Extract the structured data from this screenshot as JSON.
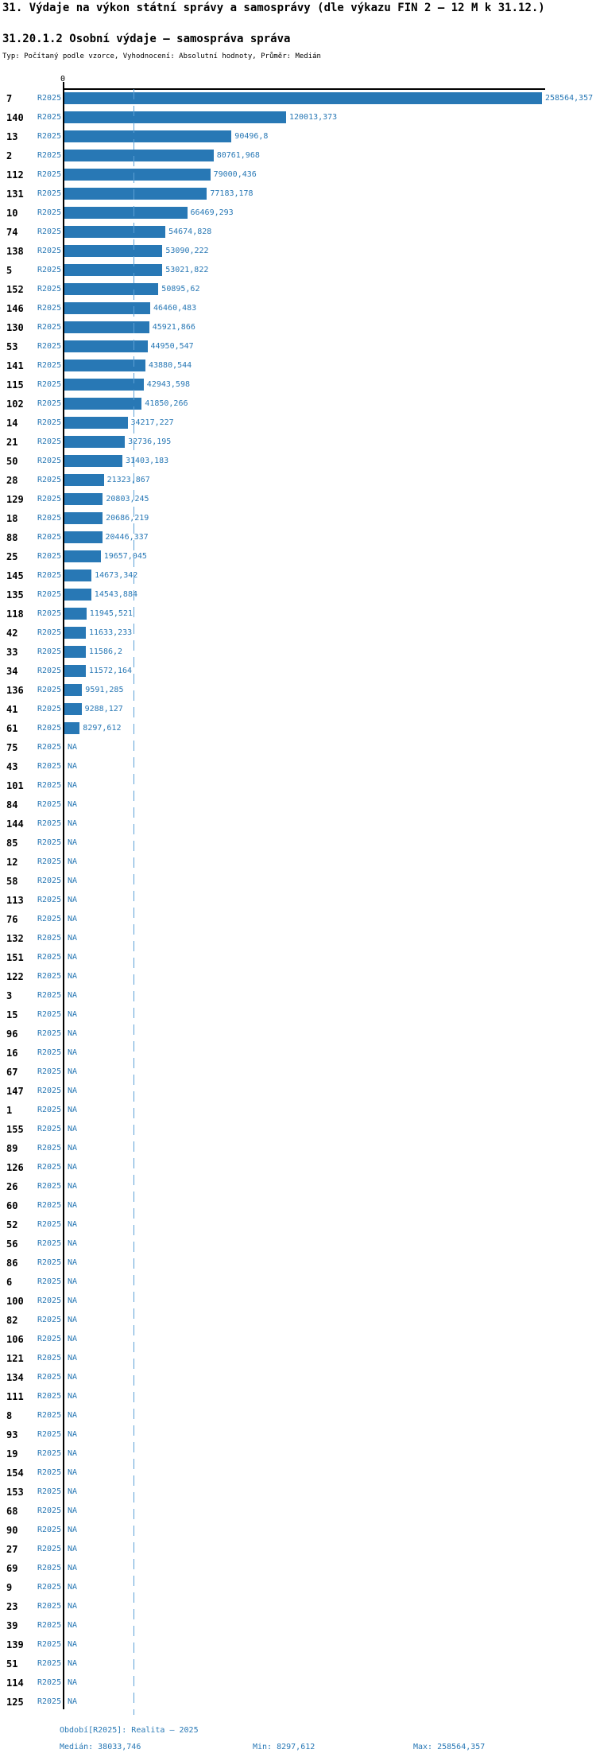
{
  "title": "31. Výdaje na výkon státní správy a samosprávy (dle výkazu FIN 2 – 12 M k 31.12.)",
  "subtitle": "31.20.1.2 Osobní výdaje – samospráva správa",
  "meta_line": "Typ: Počítaný podle vzorce, Vyhodnocení: Absolutní hodnoty, Průměr: Medián",
  "period_label": "R2025",
  "axis": {
    "zero_label": "0"
  },
  "colors": {
    "bar": "#2878b5",
    "text_blue": "#2878b5",
    "median_line": "#5ca1d6",
    "axis": "#000000"
  },
  "footer": {
    "period": "Období[R2025]: Realita – 2025",
    "median": "Medián: 38033,746",
    "min": "Min: 8297,612",
    "max": "Max: 258564,357"
  },
  "chart_data": {
    "type": "bar",
    "orientation": "horizontal",
    "title": "31.20.1.2 Osobní výdaje – samospráva správa",
    "xlabel": "",
    "ylabel": "",
    "xlim": [
      0,
      258564.357
    ],
    "axis_max": 258564.357,
    "grid": false,
    "median": 38033.746,
    "min": 8297.612,
    "max": 258564.357,
    "na_text": "NA",
    "series_label": "R2025",
    "rows": [
      {
        "label": "7",
        "value": 258564.357,
        "display": "258564,357"
      },
      {
        "label": "140",
        "value": 120013.373,
        "display": "120013,373"
      },
      {
        "label": "13",
        "value": 90496.8,
        "display": "90496,8"
      },
      {
        "label": "2",
        "value": 80761.968,
        "display": "80761,968"
      },
      {
        "label": "112",
        "value": 79000.436,
        "display": "79000,436"
      },
      {
        "label": "131",
        "value": 77183.178,
        "display": "77183,178"
      },
      {
        "label": "10",
        "value": 66469.293,
        "display": "66469,293"
      },
      {
        "label": "74",
        "value": 54674.828,
        "display": "54674,828"
      },
      {
        "label": "138",
        "value": 53090.222,
        "display": "53090,222"
      },
      {
        "label": "5",
        "value": 53021.822,
        "display": "53021,822"
      },
      {
        "label": "152",
        "value": 50895.62,
        "display": "50895,62"
      },
      {
        "label": "146",
        "value": 46460.483,
        "display": "46460,483"
      },
      {
        "label": "130",
        "value": 45921.866,
        "display": "45921,866"
      },
      {
        "label": "53",
        "value": 44950.547,
        "display": "44950,547"
      },
      {
        "label": "141",
        "value": 43880.544,
        "display": "43880,544"
      },
      {
        "label": "115",
        "value": 42943.598,
        "display": "42943,598"
      },
      {
        "label": "102",
        "value": 41850.266,
        "display": "41850,266"
      },
      {
        "label": "14",
        "value": 34217.227,
        "display": "34217,227"
      },
      {
        "label": "21",
        "value": 32736.195,
        "display": "32736,195"
      },
      {
        "label": "50",
        "value": 31403.183,
        "display": "31403,183"
      },
      {
        "label": "28",
        "value": 21323.867,
        "display": "21323,867"
      },
      {
        "label": "129",
        "value": 20803.245,
        "display": "20803,245"
      },
      {
        "label": "18",
        "value": 20686.219,
        "display": "20686,219"
      },
      {
        "label": "88",
        "value": 20446.337,
        "display": "20446,337"
      },
      {
        "label": "25",
        "value": 19657.045,
        "display": "19657,045"
      },
      {
        "label": "145",
        "value": 14673.342,
        "display": "14673,342"
      },
      {
        "label": "135",
        "value": 14543.884,
        "display": "14543,884"
      },
      {
        "label": "118",
        "value": 11945.521,
        "display": "11945,521"
      },
      {
        "label": "42",
        "value": 11633.233,
        "display": "11633,233"
      },
      {
        "label": "33",
        "value": 11586.2,
        "display": "11586,2"
      },
      {
        "label": "34",
        "value": 11572.164,
        "display": "11572,164"
      },
      {
        "label": "136",
        "value": 9591.285,
        "display": "9591,285"
      },
      {
        "label": "41",
        "value": 9288.127,
        "display": "9288,127"
      },
      {
        "label": "61",
        "value": 8297.612,
        "display": "8297,612"
      },
      {
        "label": "75",
        "value": null,
        "display": "NA"
      },
      {
        "label": "43",
        "value": null,
        "display": "NA"
      },
      {
        "label": "101",
        "value": null,
        "display": "NA"
      },
      {
        "label": "84",
        "value": null,
        "display": "NA"
      },
      {
        "label": "144",
        "value": null,
        "display": "NA"
      },
      {
        "label": "85",
        "value": null,
        "display": "NA"
      },
      {
        "label": "12",
        "value": null,
        "display": "NA"
      },
      {
        "label": "58",
        "value": null,
        "display": "NA"
      },
      {
        "label": "113",
        "value": null,
        "display": "NA"
      },
      {
        "label": "76",
        "value": null,
        "display": "NA"
      },
      {
        "label": "132",
        "value": null,
        "display": "NA"
      },
      {
        "label": "151",
        "value": null,
        "display": "NA"
      },
      {
        "label": "122",
        "value": null,
        "display": "NA"
      },
      {
        "label": "3",
        "value": null,
        "display": "NA"
      },
      {
        "label": "15",
        "value": null,
        "display": "NA"
      },
      {
        "label": "96",
        "value": null,
        "display": "NA"
      },
      {
        "label": "16",
        "value": null,
        "display": "NA"
      },
      {
        "label": "67",
        "value": null,
        "display": "NA"
      },
      {
        "label": "147",
        "value": null,
        "display": "NA"
      },
      {
        "label": "1",
        "value": null,
        "display": "NA"
      },
      {
        "label": "155",
        "value": null,
        "display": "NA"
      },
      {
        "label": "89",
        "value": null,
        "display": "NA"
      },
      {
        "label": "126",
        "value": null,
        "display": "NA"
      },
      {
        "label": "26",
        "value": null,
        "display": "NA"
      },
      {
        "label": "60",
        "value": null,
        "display": "NA"
      },
      {
        "label": "52",
        "value": null,
        "display": "NA"
      },
      {
        "label": "56",
        "value": null,
        "display": "NA"
      },
      {
        "label": "86",
        "value": null,
        "display": "NA"
      },
      {
        "label": "6",
        "value": null,
        "display": "NA"
      },
      {
        "label": "100",
        "value": null,
        "display": "NA"
      },
      {
        "label": "82",
        "value": null,
        "display": "NA"
      },
      {
        "label": "106",
        "value": null,
        "display": "NA"
      },
      {
        "label": "121",
        "value": null,
        "display": "NA"
      },
      {
        "label": "134",
        "value": null,
        "display": "NA"
      },
      {
        "label": "111",
        "value": null,
        "display": "NA"
      },
      {
        "label": "8",
        "value": null,
        "display": "NA"
      },
      {
        "label": "93",
        "value": null,
        "display": "NA"
      },
      {
        "label": "19",
        "value": null,
        "display": "NA"
      },
      {
        "label": "154",
        "value": null,
        "display": "NA"
      },
      {
        "label": "153",
        "value": null,
        "display": "NA"
      },
      {
        "label": "68",
        "value": null,
        "display": "NA"
      },
      {
        "label": "90",
        "value": null,
        "display": "NA"
      },
      {
        "label": "27",
        "value": null,
        "display": "NA"
      },
      {
        "label": "69",
        "value": null,
        "display": "NA"
      },
      {
        "label": "9",
        "value": null,
        "display": "NA"
      },
      {
        "label": "23",
        "value": null,
        "display": "NA"
      },
      {
        "label": "39",
        "value": null,
        "display": "NA"
      },
      {
        "label": "139",
        "value": null,
        "display": "NA"
      },
      {
        "label": "51",
        "value": null,
        "display": "NA"
      },
      {
        "label": "114",
        "value": null,
        "display": "NA"
      },
      {
        "label": "125",
        "value": null,
        "display": "NA"
      }
    ]
  }
}
